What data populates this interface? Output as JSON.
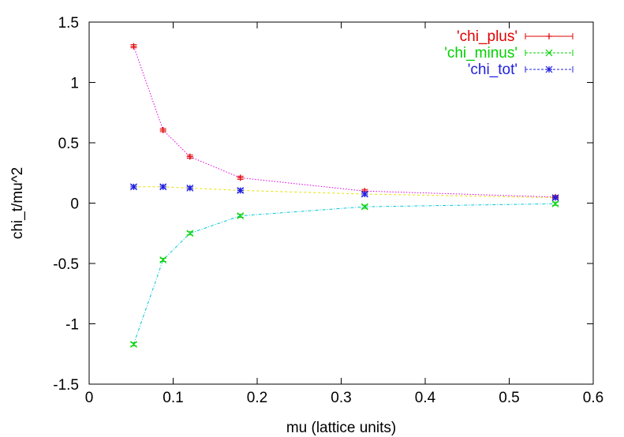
{
  "chart_data": {
    "type": "line",
    "xlabel": "mu (lattice units)",
    "ylabel": "chi_t/mu^2",
    "xlim": [
      0,
      0.6
    ],
    "ylim": [
      -1.5,
      1.5
    ],
    "xticks": [
      0,
      0.1,
      0.2,
      0.3,
      0.4,
      0.5,
      0.6
    ],
    "yticks": [
      -1.5,
      -1,
      -0.5,
      0,
      0.5,
      1,
      1.5
    ],
    "xtick_labels": [
      "0",
      "0.1",
      "0.2",
      "0.3",
      "0.4",
      "0.5",
      "0.6"
    ],
    "ytick_labels": [
      "-1.5",
      "-1",
      "-0.5",
      "0",
      "0.5",
      "1",
      "1.5"
    ],
    "grid": false,
    "legend_position": "top-right",
    "series": [
      {
        "name": "'chi_plus'",
        "marker": "plus",
        "color": "#e00000",
        "line_color": "#e000e0",
        "x": [
          0.053,
          0.088,
          0.12,
          0.18,
          0.328,
          0.555
        ],
        "y": [
          1.3,
          0.605,
          0.385,
          0.21,
          0.1,
          0.05
        ]
      },
      {
        "name": "'chi_minus'",
        "marker": "cross",
        "color": "#00d000",
        "line_color": "#00c8d8",
        "x": [
          0.053,
          0.088,
          0.12,
          0.18,
          0.328,
          0.555
        ],
        "y": [
          -1.17,
          -0.47,
          -0.25,
          -0.105,
          -0.03,
          -0.005
        ]
      },
      {
        "name": "'chi_tot'",
        "marker": "star",
        "color": "#2020e0",
        "line_color": "#e8e000",
        "x": [
          0.053,
          0.088,
          0.12,
          0.18,
          0.328,
          0.555
        ],
        "y": [
          0.135,
          0.135,
          0.125,
          0.105,
          0.075,
          0.045
        ]
      }
    ]
  }
}
